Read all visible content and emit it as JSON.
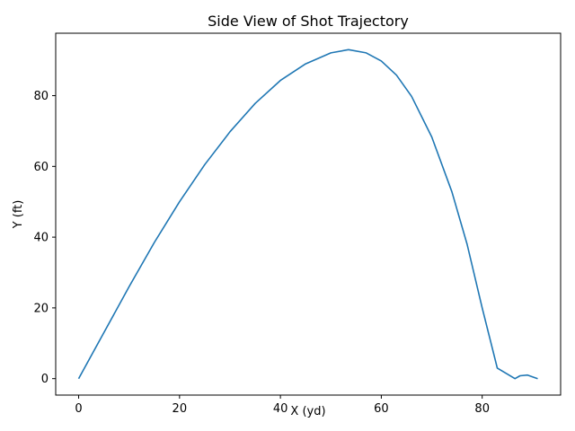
{
  "chart_data": {
    "type": "line",
    "title": "Side View of Shot Trajectory",
    "xlabel": "X (yd)",
    "ylabel": "Y (ft)",
    "xlim": [
      -4.55,
      95.55
    ],
    "ylim": [
      -4.65,
      97.65
    ],
    "x_ticks": [
      0,
      20,
      40,
      60,
      80
    ],
    "y_ticks": [
      0,
      20,
      40,
      60,
      80
    ],
    "grid": false,
    "series": [
      {
        "color": "#1f77b4",
        "x": [
          0,
          5,
          10,
          15,
          20,
          25,
          30,
          35,
          40,
          45,
          50,
          53.5,
          57,
          60,
          63,
          66,
          70,
          74,
          77,
          80,
          83,
          86.5,
          87.5,
          89,
          90,
          91
        ],
        "y": [
          0,
          13,
          26,
          38.5,
          50,
          60.5,
          69.8,
          77.8,
          84.3,
          89,
          92.1,
          93,
          92.1,
          89.8,
          85.8,
          79.8,
          68.3,
          52.8,
          38,
          20,
          3,
          0,
          0.8,
          1,
          0.5,
          0
        ]
      }
    ]
  }
}
